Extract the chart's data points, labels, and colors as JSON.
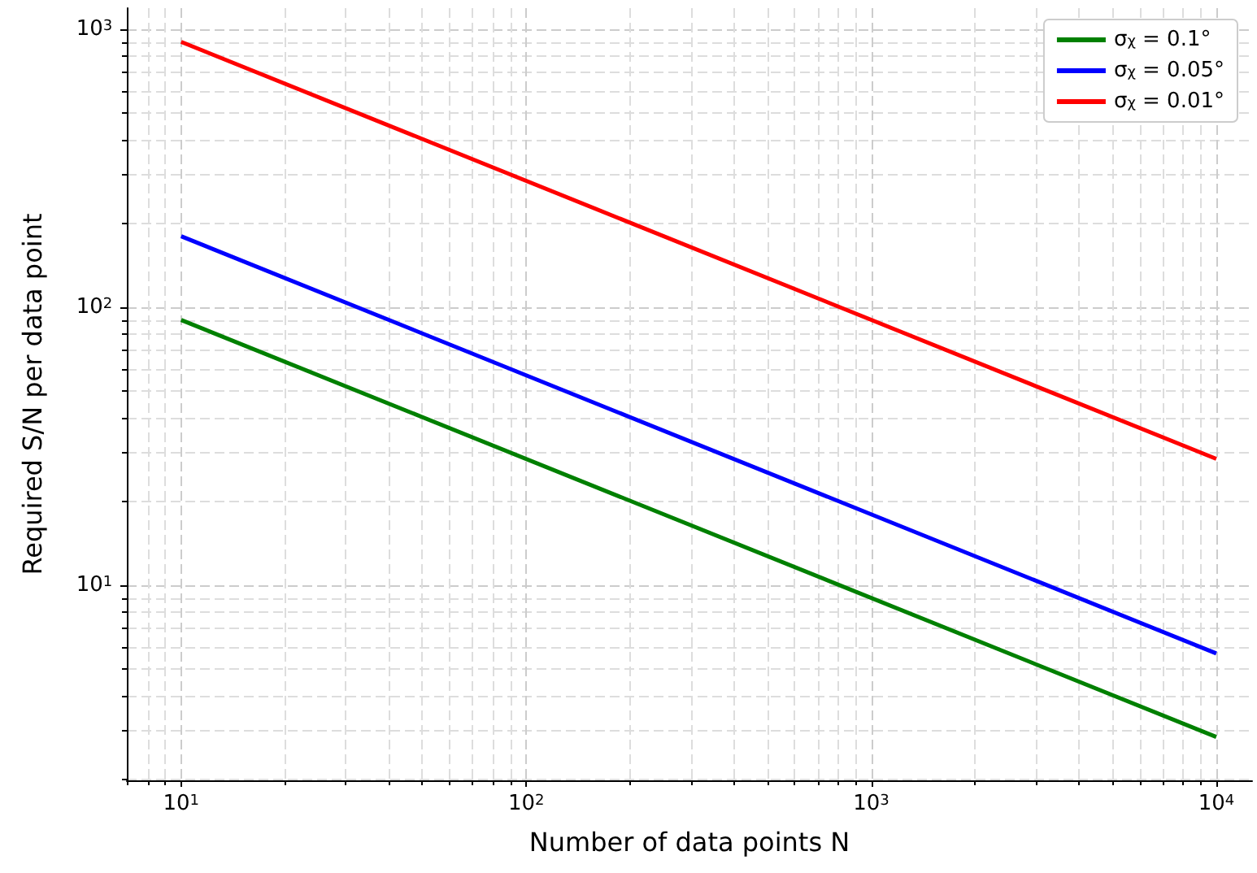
{
  "chart_data": {
    "type": "line",
    "xlabel": "Number of data points N",
    "ylabel": "Required S/N per data point",
    "log": "xy",
    "grid": true,
    "legend": "top right",
    "line_style": "solid",
    "marker": "none",
    "xlim": [
      6.96,
      12700
    ],
    "ylim": [
      1.99,
      1190
    ],
    "xticks": [
      {
        "value": 10,
        "label": "10$^{1}$"
      },
      {
        "value": 100,
        "label": "10$^{2}$"
      },
      {
        "value": 1000,
        "label": "10$^{3}$"
      },
      {
        "value": 10000,
        "label": "10$^{4}$"
      }
    ],
    "yticks": [
      {
        "value": 10,
        "label": "10$^{1}$"
      },
      {
        "value": 100,
        "label": "10$^{2}$"
      },
      {
        "value": 1000,
        "label": "10$^{3}$"
      }
    ],
    "x": [
      10,
      10000
    ],
    "series": [
      {
        "name": "σ$_{χ}$ = 0.1°",
        "color": "#008000",
        "values": [
          90,
          2.85
        ]
      },
      {
        "name": "σ$_{χ}$ = 0.05°",
        "color": "#0000ff",
        "values": [
          180,
          5.69
        ]
      },
      {
        "name": "σ$_{χ}$ = 0.01°",
        "color": "#ff0000",
        "values": [
          900,
          28.5
        ]
      }
    ]
  }
}
